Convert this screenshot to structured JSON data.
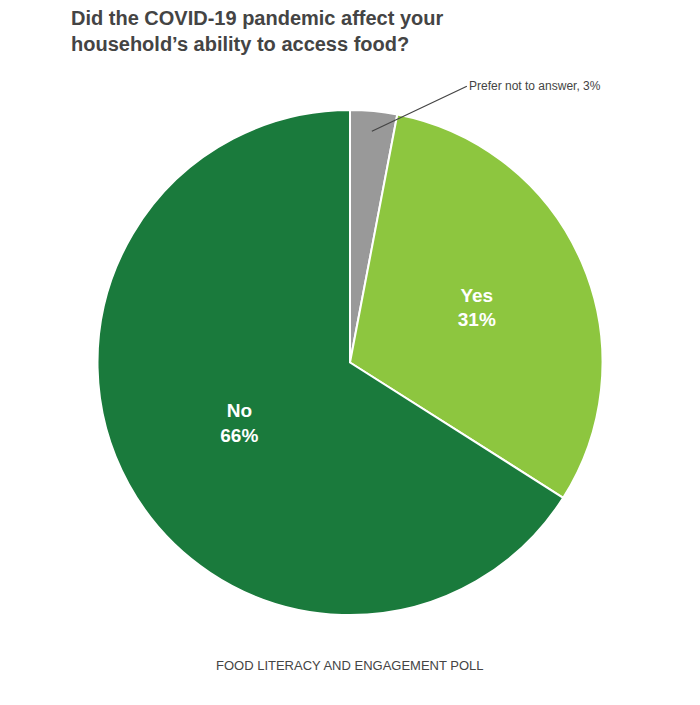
{
  "chart_data": {
    "type": "pie",
    "title": "Did the COVID-19 pandemic affect your\nhousehold’s ability to access food?",
    "categories": [
      "Prefer not to answer",
      "Yes",
      "No"
    ],
    "values": [
      3,
      31,
      66
    ],
    "colors": [
      "#999999",
      "#8dc63f",
      "#1a7a3c"
    ],
    "data_labels": true,
    "value_labels": [
      null,
      "Yes\n31%",
      "No\n66%"
    ],
    "annotations": [
      {
        "text": "Prefer not to answer, 3%",
        "category": "Prefer not to answer"
      }
    ],
    "footer": "FOOD LITERACY AND ENGAGEMENT POLL"
  }
}
